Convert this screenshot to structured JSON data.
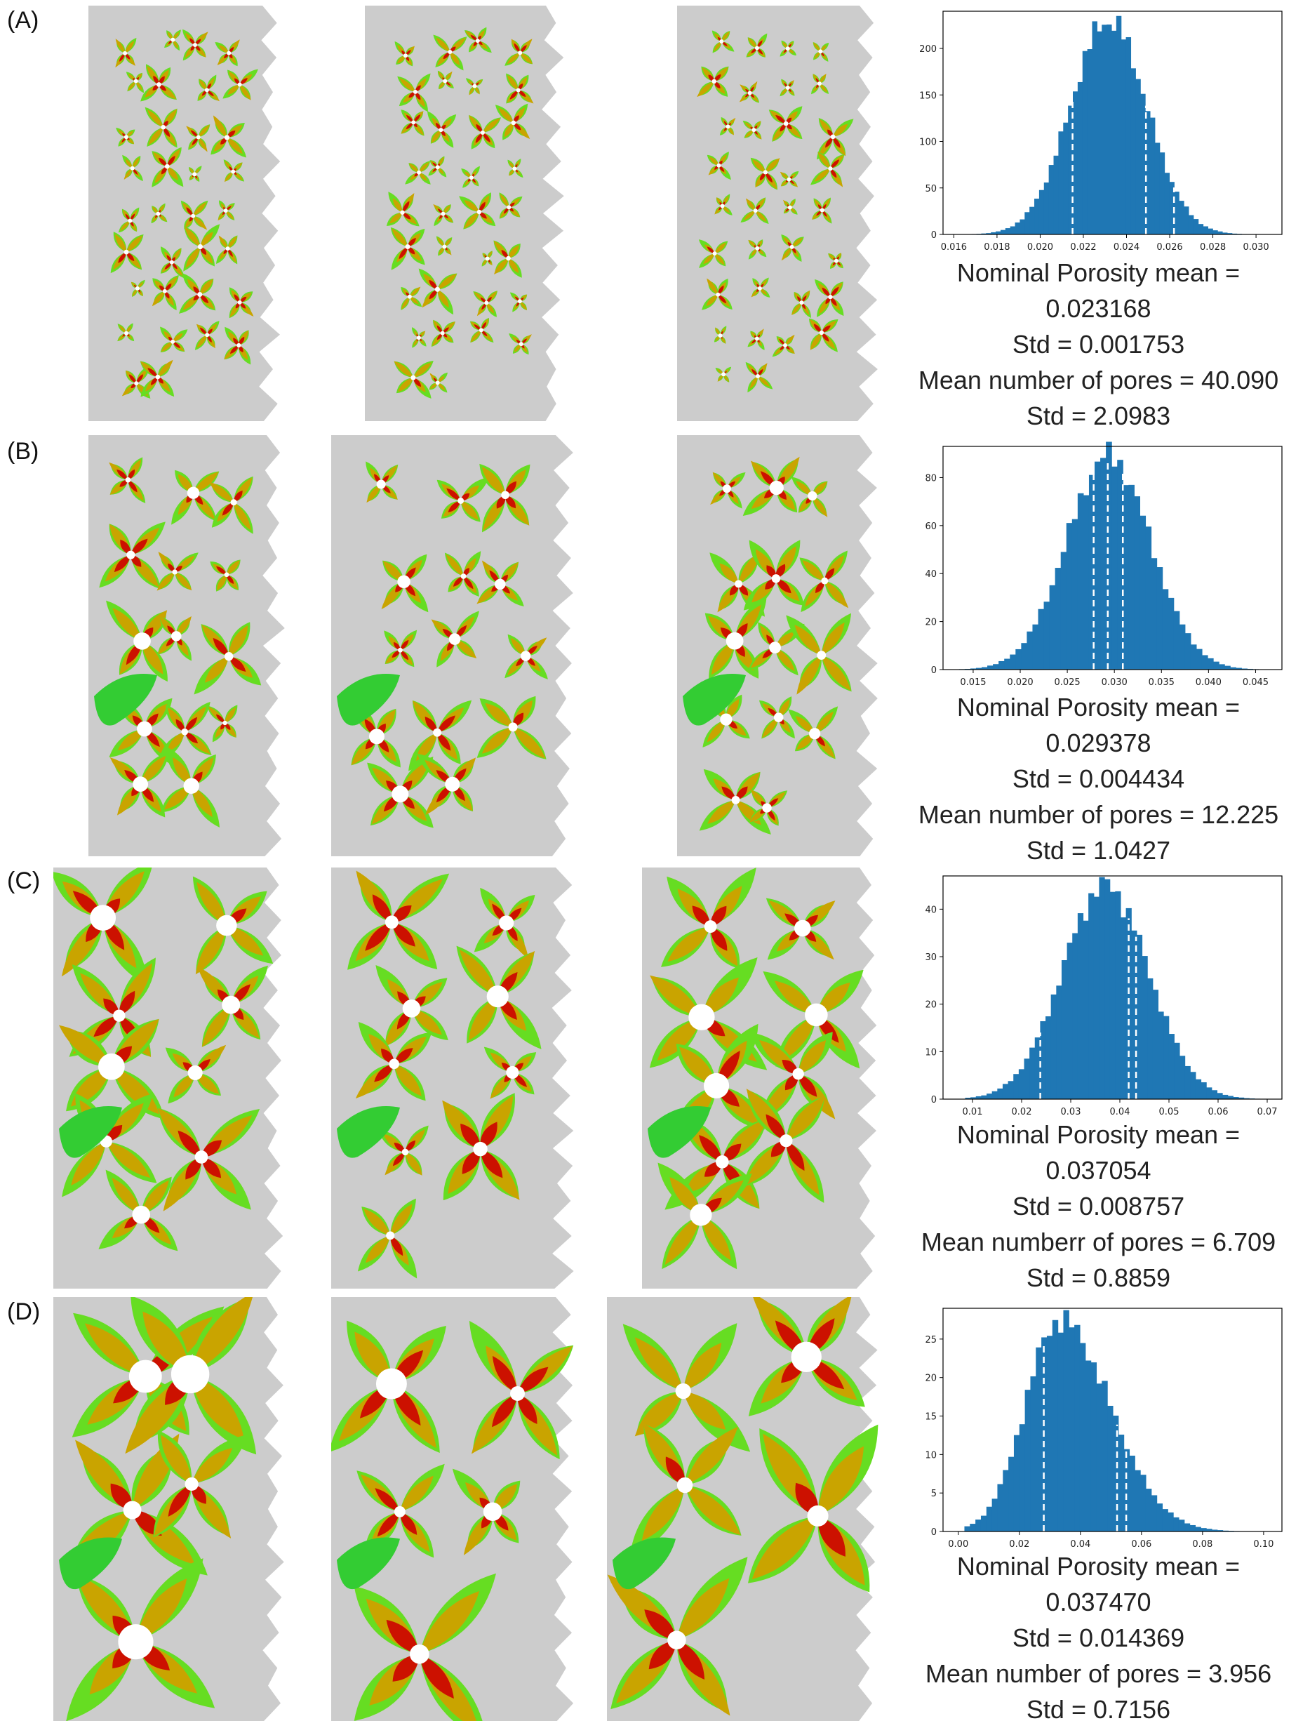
{
  "colors": {
    "matrix": "#cccccc",
    "orange": "#c9a400",
    "red": "#cc1100",
    "lightgreen": "#66dd22",
    "green": "#33cc33",
    "cyan": "#11aadd",
    "darkblue": "#112299",
    "hist": "#1f77b4"
  },
  "rows": [
    {
      "label": "(A)",
      "stats": [
        "Nominal Porosity mean =",
        "0.023168",
        "Std = 0.001753",
        "Mean number of pores = 40.090",
        "Std = 2.0983"
      ],
      "chart_data": {
        "type": "bar",
        "title": "",
        "xlabel": "",
        "ylabel": "",
        "xlim": [
          0.0155,
          0.0312
        ],
        "ylim": [
          0,
          240
        ],
        "xticks": [
          0.016,
          0.018,
          0.02,
          0.022,
          0.024,
          0.026,
          0.028,
          0.03
        ],
        "xticklabels": [
          "0.016",
          "0.018",
          "0.020",
          "0.022",
          "0.024",
          "0.026",
          "0.028",
          "0.030"
        ],
        "yticks": [
          0,
          50,
          100,
          150,
          200
        ],
        "yticklabels": [
          "0",
          "50",
          "100",
          "150",
          "200"
        ],
        "mean": 0.023168,
        "std": 0.001753,
        "peak": 230,
        "dashed_lines": [
          0.0215,
          0.0249,
          0.0262
        ],
        "bin_range": [
          0.0166,
          0.03
        ],
        "bins": 60
      }
    },
    {
      "label": "(B)",
      "stats": [
        "Nominal Porosity mean =",
        "0.029378",
        "Std = 0.004434",
        "Mean number of pores = 12.225",
        "Std = 1.0427"
      ],
      "chart_data": {
        "type": "bar",
        "title": "",
        "xlabel": "",
        "ylabel": "",
        "xlim": [
          0.0118,
          0.0478
        ],
        "ylim": [
          0,
          93
        ],
        "xticks": [
          0.015,
          0.02,
          0.025,
          0.03,
          0.035,
          0.04,
          0.045
        ],
        "xticklabels": [
          "0.015",
          "0.020",
          "0.025",
          "0.030",
          "0.035",
          "0.040",
          "0.045"
        ],
        "yticks": [
          0,
          20,
          40,
          60,
          80
        ],
        "yticklabels": [
          "0",
          "20",
          "40",
          "60",
          "80"
        ],
        "mean": 0.029378,
        "std": 0.004434,
        "peak": 89,
        "dashed_lines": [
          0.0278,
          0.0293,
          0.0309
        ],
        "bin_range": [
          0.0135,
          0.0465
        ],
        "bins": 55
      }
    },
    {
      "label": "(C)",
      "stats": [
        "Nominal Porosity mean =",
        "0.037054",
        "Std = 0.008757",
        "Mean numberr of pores = 6.709",
        "Std = 0.8859"
      ],
      "chart_data": {
        "type": "bar",
        "title": "",
        "xlabel": "",
        "ylabel": "",
        "xlim": [
          0.004,
          0.073
        ],
        "ylim": [
          0,
          47
        ],
        "xticks": [
          0.01,
          0.02,
          0.03,
          0.04,
          0.05,
          0.06,
          0.07
        ],
        "xticklabels": [
          "0.01",
          "0.02",
          "0.03",
          "0.04",
          "0.05",
          "0.06",
          "0.07"
        ],
        "yticks": [
          0,
          10,
          20,
          30,
          40
        ],
        "yticklabels": [
          "0",
          "10",
          "20",
          "30",
          "40"
        ],
        "mean": 0.037054,
        "std": 0.008757,
        "peak": 45,
        "dashed_lines": [
          0.0238,
          0.0418,
          0.0433
        ],
        "bin_range": [
          0.0085,
          0.0685
        ],
        "bins": 55
      }
    },
    {
      "label": "(D)",
      "stats": [
        "Nominal Porosity mean =",
        "0.037470",
        "Std = 0.014369",
        "Mean number of pores = 3.956",
        "Std = 0.7156"
      ],
      "chart_data": {
        "type": "bar",
        "title": "",
        "xlabel": "",
        "ylabel": "",
        "xlim": [
          -0.005,
          0.106
        ],
        "ylim": [
          0,
          29
        ],
        "xticks": [
          0.0,
          0.02,
          0.04,
          0.06,
          0.08,
          0.1
        ],
        "xticklabels": [
          "0.00",
          "0.02",
          "0.04",
          "0.06",
          "0.08",
          "0.10"
        ],
        "yticks": [
          0,
          5,
          10,
          15,
          20,
          25
        ],
        "yticklabels": [
          "0",
          "5",
          "10",
          "15",
          "20",
          "25"
        ],
        "mean": 0.03747,
        "std": 0.014369,
        "peak": 27.5,
        "skew": true,
        "dashed_lines": [
          0.028,
          0.052,
          0.055
        ],
        "bin_range": [
          0.002,
          0.092
        ],
        "bins": 50
      }
    }
  ]
}
